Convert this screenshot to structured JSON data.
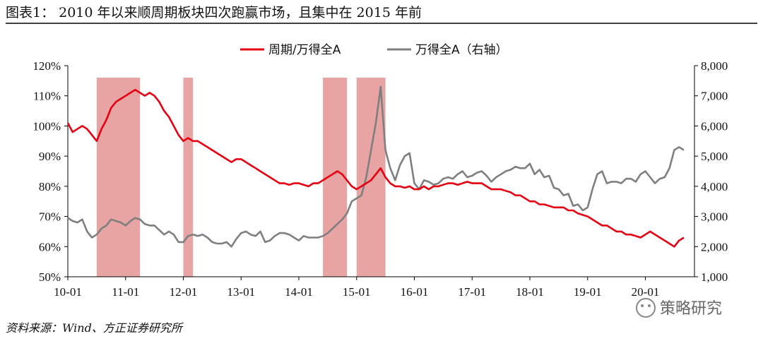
{
  "title": "图表1：  2010 年以来顺周期板块四次跑赢市场，且集中在 2015 年前",
  "source": "资料来源：Wind、方正证券研究所",
  "watermark": "策略研究",
  "colors": {
    "cyclical": "#e60012",
    "wind_a": "#7f7f7f",
    "highlight": "#e8a3a3",
    "axis": "#000000"
  },
  "chart_data": {
    "type": "line",
    "x_ticks": [
      "10-01",
      "11-01",
      "12-01",
      "13-01",
      "14-01",
      "15-01",
      "16-01",
      "17-01",
      "18-01",
      "19-01",
      "20-01"
    ],
    "y_left": {
      "ticks": [
        "50%",
        "60%",
        "70%",
        "80%",
        "90%",
        "100%",
        "110%",
        "120%"
      ],
      "range": [
        50,
        120
      ]
    },
    "y_right": {
      "ticks": [
        "1,000",
        "2,000",
        "3,000",
        "4,000",
        "5,000",
        "6,000",
        "7,000",
        "8,000"
      ],
      "range": [
        1000,
        8000
      ]
    },
    "legend": {
      "placement": "top",
      "entries": [
        "周期/万得全A",
        "万得全A（右轴）"
      ]
    },
    "highlight_periods": [
      {
        "start": "2010-07",
        "end": "2011-04"
      },
      {
        "start": "2012-01",
        "end": "2012-03"
      },
      {
        "start": "2014-06",
        "end": "2014-11"
      },
      {
        "start": "2015-01",
        "end": "2015-07"
      }
    ],
    "series": [
      {
        "name": "周期/万得全A",
        "axis": "left",
        "points": [
          [
            "2010-01",
            101
          ],
          [
            "2010-02",
            98
          ],
          [
            "2010-03",
            99
          ],
          [
            "2010-04",
            100
          ],
          [
            "2010-05",
            99
          ],
          [
            "2010-06",
            97
          ],
          [
            "2010-07",
            95
          ],
          [
            "2010-08",
            99
          ],
          [
            "2010-09",
            102
          ],
          [
            "2010-10",
            106
          ],
          [
            "2010-11",
            108
          ],
          [
            "2010-12",
            109
          ],
          [
            "2011-01",
            110
          ],
          [
            "2011-02",
            111
          ],
          [
            "2011-03",
            112
          ],
          [
            "2011-04",
            111
          ],
          [
            "2011-05",
            110
          ],
          [
            "2011-06",
            111
          ],
          [
            "2011-07",
            110
          ],
          [
            "2011-08",
            108
          ],
          [
            "2011-09",
            105
          ],
          [
            "2011-10",
            103
          ],
          [
            "2011-11",
            100
          ],
          [
            "2011-12",
            97
          ],
          [
            "2012-01",
            95
          ],
          [
            "2012-02",
            96
          ],
          [
            "2012-03",
            95
          ],
          [
            "2012-04",
            95
          ],
          [
            "2012-05",
            94
          ],
          [
            "2012-06",
            93
          ],
          [
            "2012-07",
            92
          ],
          [
            "2012-08",
            91
          ],
          [
            "2012-09",
            90
          ],
          [
            "2012-10",
            89
          ],
          [
            "2012-11",
            88
          ],
          [
            "2012-12",
            89
          ],
          [
            "2013-01",
            89
          ],
          [
            "2013-02",
            88
          ],
          [
            "2013-03",
            87
          ],
          [
            "2013-04",
            86
          ],
          [
            "2013-05",
            85
          ],
          [
            "2013-06",
            84
          ],
          [
            "2013-07",
            83
          ],
          [
            "2013-08",
            82
          ],
          [
            "2013-09",
            81
          ],
          [
            "2013-10",
            81
          ],
          [
            "2013-11",
            80.5
          ],
          [
            "2013-12",
            81
          ],
          [
            "2014-01",
            81
          ],
          [
            "2014-02",
            80.5
          ],
          [
            "2014-03",
            80
          ],
          [
            "2014-04",
            81
          ],
          [
            "2014-05",
            81
          ],
          [
            "2014-06",
            82
          ],
          [
            "2014-07",
            83
          ],
          [
            "2014-08",
            84
          ],
          [
            "2014-09",
            85
          ],
          [
            "2014-10",
            84
          ],
          [
            "2014-11",
            82
          ],
          [
            "2014-12",
            80
          ],
          [
            "2015-01",
            79
          ],
          [
            "2015-02",
            80
          ],
          [
            "2015-03",
            81
          ],
          [
            "2015-04",
            82
          ],
          [
            "2015-05",
            84
          ],
          [
            "2015-06",
            86
          ],
          [
            "2015-07",
            83
          ],
          [
            "2015-08",
            81
          ],
          [
            "2015-09",
            80
          ],
          [
            "2015-10",
            80
          ],
          [
            "2015-11",
            79.5
          ],
          [
            "2015-12",
            80
          ],
          [
            "2016-01",
            79
          ],
          [
            "2016-02",
            79
          ],
          [
            "2016-03",
            80
          ],
          [
            "2016-04",
            79
          ],
          [
            "2016-05",
            80
          ],
          [
            "2016-06",
            80
          ],
          [
            "2016-07",
            80.5
          ],
          [
            "2016-08",
            81
          ],
          [
            "2016-09",
            81
          ],
          [
            "2016-10",
            80.5
          ],
          [
            "2016-11",
            81
          ],
          [
            "2016-12",
            81.5
          ],
          [
            "2017-01",
            81
          ],
          [
            "2017-02",
            81
          ],
          [
            "2017-03",
            81
          ],
          [
            "2017-04",
            80
          ],
          [
            "2017-05",
            79
          ],
          [
            "2017-06",
            79
          ],
          [
            "2017-07",
            79
          ],
          [
            "2017-08",
            78.5
          ],
          [
            "2017-09",
            78
          ],
          [
            "2017-10",
            77
          ],
          [
            "2017-11",
            77
          ],
          [
            "2017-12",
            76
          ],
          [
            "2018-01",
            75
          ],
          [
            "2018-02",
            75
          ],
          [
            "2018-03",
            74
          ],
          [
            "2018-04",
            74
          ],
          [
            "2018-05",
            73.5
          ],
          [
            "2018-06",
            73
          ],
          [
            "2018-07",
            73
          ],
          [
            "2018-08",
            73
          ],
          [
            "2018-09",
            72
          ],
          [
            "2018-10",
            72
          ],
          [
            "2018-11",
            71
          ],
          [
            "2018-12",
            70.5
          ],
          [
            "2019-01",
            70
          ],
          [
            "2019-02",
            69
          ],
          [
            "2019-03",
            68
          ],
          [
            "2019-04",
            67
          ],
          [
            "2019-05",
            67
          ],
          [
            "2019-06",
            66
          ],
          [
            "2019-07",
            65
          ],
          [
            "2019-08",
            65
          ],
          [
            "2019-09",
            64
          ],
          [
            "2019-10",
            64
          ],
          [
            "2019-11",
            63.5
          ],
          [
            "2019-12",
            63
          ],
          [
            "2020-01",
            64
          ],
          [
            "2020-02",
            65
          ],
          [
            "2020-03",
            64
          ],
          [
            "2020-04",
            63
          ],
          [
            "2020-05",
            62
          ],
          [
            "2020-06",
            61
          ],
          [
            "2020-07",
            60
          ],
          [
            "2020-08",
            62
          ],
          [
            "2020-09",
            63
          ]
        ]
      },
      {
        "name": "万得全A（右轴）",
        "axis": "right",
        "points": [
          [
            "2010-01",
            2950
          ],
          [
            "2010-02",
            2850
          ],
          [
            "2010-03",
            2800
          ],
          [
            "2010-04",
            2900
          ],
          [
            "2010-05",
            2500
          ],
          [
            "2010-06",
            2300
          ],
          [
            "2010-07",
            2400
          ],
          [
            "2010-08",
            2600
          ],
          [
            "2010-09",
            2700
          ],
          [
            "2010-10",
            2900
          ],
          [
            "2010-11",
            2850
          ],
          [
            "2010-12",
            2800
          ],
          [
            "2011-01",
            2700
          ],
          [
            "2011-02",
            2850
          ],
          [
            "2011-03",
            2950
          ],
          [
            "2011-04",
            2900
          ],
          [
            "2011-05",
            2750
          ],
          [
            "2011-06",
            2700
          ],
          [
            "2011-07",
            2700
          ],
          [
            "2011-08",
            2550
          ],
          [
            "2011-09",
            2400
          ],
          [
            "2011-10",
            2500
          ],
          [
            "2011-11",
            2400
          ],
          [
            "2011-12",
            2150
          ],
          [
            "2012-01",
            2150
          ],
          [
            "2012-02",
            2350
          ],
          [
            "2012-03",
            2400
          ],
          [
            "2012-04",
            2350
          ],
          [
            "2012-05",
            2400
          ],
          [
            "2012-06",
            2300
          ],
          [
            "2012-07",
            2150
          ],
          [
            "2012-08",
            2100
          ],
          [
            "2012-09",
            2100
          ],
          [
            "2012-10",
            2150
          ],
          [
            "2012-11",
            2000
          ],
          [
            "2012-12",
            2250
          ],
          [
            "2013-01",
            2450
          ],
          [
            "2013-02",
            2500
          ],
          [
            "2013-03",
            2400
          ],
          [
            "2013-04",
            2350
          ],
          [
            "2013-05",
            2500
          ],
          [
            "2013-06",
            2150
          ],
          [
            "2013-07",
            2200
          ],
          [
            "2013-08",
            2350
          ],
          [
            "2013-09",
            2450
          ],
          [
            "2013-10",
            2450
          ],
          [
            "2013-11",
            2400
          ],
          [
            "2013-12",
            2300
          ],
          [
            "2014-01",
            2200
          ],
          [
            "2014-02",
            2350
          ],
          [
            "2014-03",
            2300
          ],
          [
            "2014-04",
            2300
          ],
          [
            "2014-05",
            2300
          ],
          [
            "2014-06",
            2350
          ],
          [
            "2014-07",
            2450
          ],
          [
            "2014-08",
            2600
          ],
          [
            "2014-09",
            2750
          ],
          [
            "2014-10",
            2900
          ],
          [
            "2014-11",
            3100
          ],
          [
            "2014-12",
            3500
          ],
          [
            "2015-01",
            3600
          ],
          [
            "2015-02",
            3700
          ],
          [
            "2015-03",
            4300
          ],
          [
            "2015-04",
            5200
          ],
          [
            "2015-05",
            6100
          ],
          [
            "2015-06",
            7300
          ],
          [
            "2015-07",
            5200
          ],
          [
            "2015-08",
            4600
          ],
          [
            "2015-09",
            4200
          ],
          [
            "2015-10",
            4700
          ],
          [
            "2015-11",
            5000
          ],
          [
            "2015-12",
            5100
          ],
          [
            "2016-01",
            4100
          ],
          [
            "2016-02",
            3900
          ],
          [
            "2016-03",
            4200
          ],
          [
            "2016-04",
            4150
          ],
          [
            "2016-05",
            4050
          ],
          [
            "2016-06",
            4100
          ],
          [
            "2016-07",
            4250
          ],
          [
            "2016-08",
            4300
          ],
          [
            "2016-09",
            4250
          ],
          [
            "2016-10",
            4400
          ],
          [
            "2016-11",
            4500
          ],
          [
            "2016-12",
            4300
          ],
          [
            "2017-01",
            4350
          ],
          [
            "2017-02",
            4450
          ],
          [
            "2017-03",
            4500
          ],
          [
            "2017-04",
            4350
          ],
          [
            "2017-05",
            4150
          ],
          [
            "2017-06",
            4300
          ],
          [
            "2017-07",
            4400
          ],
          [
            "2017-08",
            4500
          ],
          [
            "2017-09",
            4550
          ],
          [
            "2017-10",
            4650
          ],
          [
            "2017-11",
            4600
          ],
          [
            "2017-12",
            4600
          ],
          [
            "2018-01",
            4750
          ],
          [
            "2018-02",
            4400
          ],
          [
            "2018-03",
            4550
          ],
          [
            "2018-04",
            4300
          ],
          [
            "2018-05",
            4350
          ],
          [
            "2018-06",
            3950
          ],
          [
            "2018-07",
            3900
          ],
          [
            "2018-08",
            3700
          ],
          [
            "2018-09",
            3750
          ],
          [
            "2018-10",
            3350
          ],
          [
            "2018-11",
            3400
          ],
          [
            "2018-12",
            3200
          ],
          [
            "2019-01",
            3300
          ],
          [
            "2019-02",
            3900
          ],
          [
            "2019-03",
            4400
          ],
          [
            "2019-04",
            4500
          ],
          [
            "2019-05",
            4100
          ],
          [
            "2019-06",
            4150
          ],
          [
            "2019-07",
            4150
          ],
          [
            "2019-08",
            4100
          ],
          [
            "2019-09",
            4250
          ],
          [
            "2019-10",
            4250
          ],
          [
            "2019-11",
            4150
          ],
          [
            "2019-12",
            4400
          ],
          [
            "2020-01",
            4500
          ],
          [
            "2020-02",
            4300
          ],
          [
            "2020-03",
            4100
          ],
          [
            "2020-04",
            4250
          ],
          [
            "2020-05",
            4300
          ],
          [
            "2020-06",
            4600
          ],
          [
            "2020-07",
            5200
          ],
          [
            "2020-08",
            5300
          ],
          [
            "2020-09",
            5200
          ]
        ]
      }
    ]
  }
}
